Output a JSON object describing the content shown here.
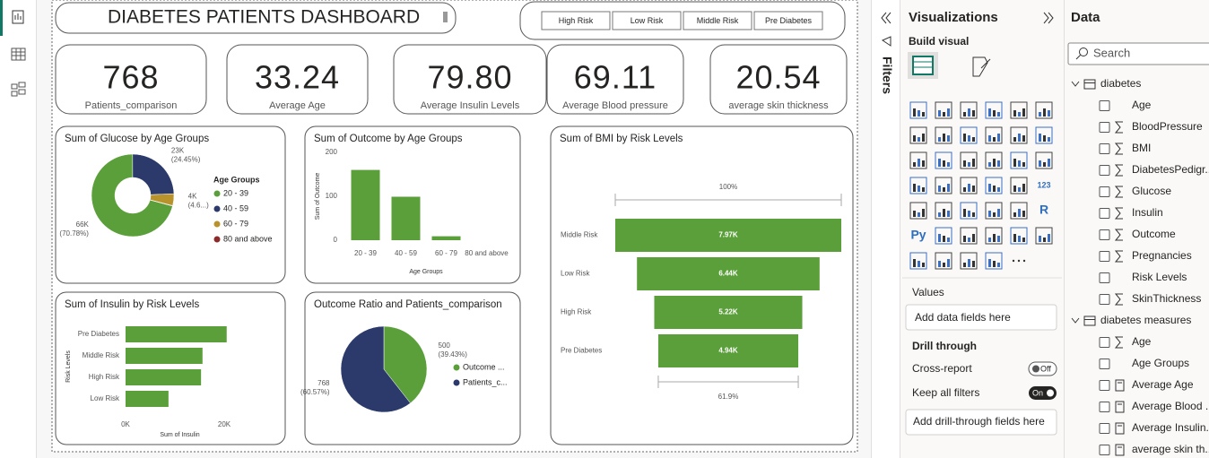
{
  "header": {
    "title": "DIABETES PATIENTS DASHBOARD",
    "slicer": [
      "High Risk",
      "Low Risk",
      "Middle Risk",
      "Pre Diabetes"
    ]
  },
  "cards": [
    {
      "value": "768",
      "label": "Patients_comparison"
    },
    {
      "value": "33.24",
      "label": "Average Age"
    },
    {
      "value": "79.80",
      "label": "Average Insulin Levels"
    },
    {
      "value": "69.11",
      "label": "Average Blood pressure"
    },
    {
      "value": "20.54",
      "label": "average skin thickness"
    }
  ],
  "chart_data": [
    {
      "type": "donut",
      "title": "Sum of Glucose by Age Groups",
      "legend_title": "Age Groups",
      "categories": [
        "20 - 39",
        "40 - 59",
        "60 - 79",
        "80 and above"
      ],
      "values": [
        66038,
        22812,
        4292,
        158
      ],
      "value_labels": [
        "66K",
        "23K",
        "4K",
        null
      ],
      "percent_labels": [
        "(70.78%)",
        "(24.45%)",
        "(4.6...)",
        null
      ],
      "colors": [
        "#5b9f3a",
        "#2b3a6b",
        "#b8922a",
        "#8c2b2b"
      ],
      "legend": "right"
    },
    {
      "type": "bar",
      "title": "Sum of Outcome by Age Groups",
      "categories": [
        "20 - 39",
        "40 - 59",
        "60 - 79",
        "80 and above"
      ],
      "values": [
        160,
        99,
        9,
        0
      ],
      "color": "#5b9f3a",
      "ylim": [
        0,
        200
      ],
      "yticks": [
        0,
        100,
        200
      ],
      "ylabel": "Sum of Outcome",
      "xlabel": "Age Groups"
    },
    {
      "type": "funnel",
      "title": "Sum of BMI by Risk Levels",
      "categories": [
        "Middle Risk",
        "Low Risk",
        "High Risk",
        "Pre Diabetes"
      ],
      "values": [
        7970,
        6440,
        5220,
        4937
      ],
      "value_labels": [
        "7.97K",
        "6.44K",
        "5.22K",
        "4.94K"
      ],
      "color": "#5b9f3a",
      "top_label": "100%",
      "bottom_label": "61.9%"
    },
    {
      "type": "bar",
      "orientation": "horizontal",
      "title": "Sum of Insulin by Risk Levels",
      "categories": [
        "Pre Diabetes",
        "Middle Risk",
        "High Risk",
        "Low Risk"
      ],
      "values": [
        20500,
        15600,
        15300,
        8700
      ],
      "color": "#5b9f3a",
      "xlim": [
        0,
        22000
      ],
      "xticks": [
        {
          "value": 0,
          "label": "0K"
        },
        {
          "value": 20000,
          "label": "20K"
        }
      ],
      "xlabel": "Sum of Insulin",
      "ylabel": "Risk Levels"
    },
    {
      "type": "pie",
      "title": "Outcome Ratio and Patients_comparison",
      "categories": [
        "Outcome ...",
        "Patients_c..."
      ],
      "values": [
        500,
        768
      ],
      "percent_labels": [
        "(39.43%)",
        "(60.57%)"
      ],
      "colors": [
        "#5b9f3a",
        "#2b3a6b"
      ],
      "legend": "right"
    }
  ],
  "filters_pane": {
    "title": "Filters"
  },
  "visualizations_pane": {
    "title": "Visualizations",
    "build_visual": "Build visual",
    "icon_texts": [
      "123",
      "R",
      "Py"
    ],
    "values_label": "Values",
    "values_placeholder": "Add data fields here",
    "drill_through": "Drill through",
    "cross_report": "Cross-report",
    "cross_report_state": "Off",
    "keep_all_filters": "Keep all filters",
    "keep_all_filters_state": "On",
    "drill_placeholder": "Add drill-through fields here"
  },
  "data_pane": {
    "title": "Data",
    "search": "Search",
    "tables": [
      {
        "name": "diabetes",
        "fields": [
          {
            "name": "Age",
            "icon": "none"
          },
          {
            "name": "BloodPressure",
            "icon": "sigma"
          },
          {
            "name": "BMI",
            "icon": "sigma"
          },
          {
            "name": "DiabetesPedigr...",
            "icon": "sigma"
          },
          {
            "name": "Glucose",
            "icon": "sigma"
          },
          {
            "name": "Insulin",
            "icon": "sigma"
          },
          {
            "name": "Outcome",
            "icon": "sigma"
          },
          {
            "name": "Pregnancies",
            "icon": "sigma"
          },
          {
            "name": "Risk Levels",
            "icon": "none"
          },
          {
            "name": "SkinThickness",
            "icon": "sigma"
          }
        ]
      },
      {
        "name": "diabetes measures",
        "fields": [
          {
            "name": "Age",
            "icon": "sigma"
          },
          {
            "name": "Age Groups",
            "icon": "none"
          },
          {
            "name": "Average Age",
            "icon": "calc"
          },
          {
            "name": "Average Blood ...",
            "icon": "calc"
          },
          {
            "name": "Average Insulin...",
            "icon": "calc"
          },
          {
            "name": "average skin th...",
            "icon": "calc"
          }
        ]
      }
    ]
  }
}
